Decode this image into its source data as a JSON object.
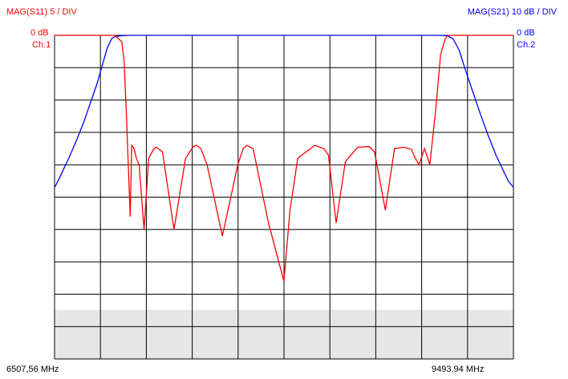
{
  "chart_data": {
    "type": "line",
    "ch1": {
      "header": "MAG(S11) 5  / DIV",
      "ref_label": "0 dB",
      "channel_label": "Ch.1",
      "color": "#ff0000"
    },
    "ch2": {
      "header": "MAG(S21) 10 dB / DIV",
      "ref_label": "0 dB",
      "channel_label": "Ch.2",
      "color": "#0000ff"
    },
    "x_start": "6507,56 MHz",
    "x_stop": "9493,94 MHz",
    "xlim": [
      6507.56,
      9493.94
    ],
    "divisions": {
      "x": 10,
      "y": 10
    },
    "grid": true,
    "shaded_divisions_from_bottom": 2,
    "series": [
      {
        "name": "MAG(S21)",
        "scale_db_per_div": 10,
        "ylim": [
          -100,
          0
        ],
        "x": [
          6507.56,
          6530,
          6560,
          6600,
          6650,
          6700,
          6740,
          6780,
          6820,
          6850,
          6880,
          6900,
          6950,
          7000,
          8000,
          9000,
          9060,
          9100,
          9140,
          9180,
          9230,
          9280,
          9330,
          9380,
          9420,
          9460,
          9493.94
        ],
        "y": [
          -47,
          -45,
          -42,
          -38,
          -32.5,
          -26.5,
          -21,
          -15.5,
          -9,
          -4,
          -1,
          -0.4,
          -0.1,
          0,
          0,
          0,
          -0.1,
          -1,
          -4.5,
          -10.5,
          -17.5,
          -24.5,
          -31,
          -37,
          -41,
          -45,
          -47
        ]
      },
      {
        "name": "MAG(S11)",
        "scale_db_per_div": 5,
        "ylim": [
          -50,
          0
        ],
        "x": [
          6507.56,
          6900,
          6945,
          6960,
          6975,
          7000,
          7010,
          7025,
          7040,
          7058,
          7090,
          7120,
          7155,
          7170,
          7210,
          7285,
          7360,
          7410,
          7430,
          7460,
          7500,
          7600,
          7700,
          7735,
          7760,
          7800,
          7900,
          8000,
          8040,
          8090,
          8200,
          8260,
          8290,
          8340,
          8400,
          8480,
          8555,
          8590,
          8660,
          8720,
          8780,
          8830,
          8855,
          8880,
          8915,
          8950,
          8990,
          9020,
          9050,
          9065,
          9100,
          9493.94
        ],
        "y": [
          0,
          0,
          -1,
          -4,
          -12,
          -28,
          -17,
          -17.5,
          -19,
          -20,
          -30,
          -19,
          -17.5,
          -17.3,
          -18,
          -30,
          -19,
          -17.2,
          -17,
          -17.5,
          -20,
          -31,
          -20,
          -17.5,
          -17,
          -17.5,
          -29,
          -38,
          -27,
          -19,
          -17,
          -17.5,
          -18.5,
          -29,
          -19.5,
          -17.3,
          -17.2,
          -18,
          -27,
          -17.5,
          -17.3,
          -17.6,
          -19,
          -20,
          -17.5,
          -20,
          -11,
          -3,
          -0.5,
          0,
          0,
          0
        ]
      }
    ]
  }
}
